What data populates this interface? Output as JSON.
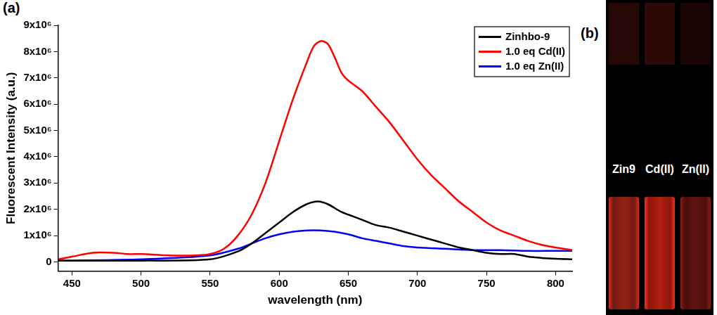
{
  "chart_data": {
    "type": "line",
    "annotations": [
      "(a)"
    ],
    "x_label": "wavelength (nm)",
    "y_label": "Fluorescent Intensity (a.u.)",
    "xlim": [
      440,
      812
    ],
    "xticks": [
      450,
      500,
      550,
      600,
      650,
      700,
      750,
      800
    ],
    "ylim": [
      -350000,
      9000000
    ],
    "yticks": [
      0,
      {
        "value": 1000000,
        "label": "1x10⁶"
      },
      {
        "value": 2000000,
        "label": "2x10⁶"
      },
      {
        "value": 3000000,
        "label": "3x10⁶"
      },
      {
        "value": 4000000,
        "label": "4x10⁶"
      },
      {
        "value": 5000000,
        "label": "5x10⁶"
      },
      {
        "value": 6000000,
        "label": "6x10⁶"
      },
      {
        "value": 7000000,
        "label": "7x10⁶"
      },
      {
        "value": 8000000,
        "label": "8x10⁶"
      },
      {
        "value": 9000000,
        "label": "9x10⁶"
      }
    ],
    "grid": false,
    "legend": "upper right",
    "series": [
      {
        "name": "Zinhbo-9",
        "color": "#000000",
        "x": [
          440,
          450,
          500,
          550,
          570,
          580,
          590,
          600,
          610,
          620,
          628,
          635,
          645,
          650,
          660,
          670,
          680,
          690,
          700,
          710,
          720,
          730,
          740,
          750,
          760,
          770,
          780,
          790,
          800,
          812
        ],
        "values": [
          50000,
          50000,
          50000,
          100000,
          400000,
          700000,
          1100000,
          1500000,
          1900000,
          2200000,
          2300000,
          2200000,
          1900000,
          1800000,
          1600000,
          1400000,
          1300000,
          1150000,
          1000000,
          850000,
          700000,
          550000,
          450000,
          350000,
          300000,
          300000,
          200000,
          150000,
          120000,
          100000
        ]
      },
      {
        "name": "1.0 eq Cd(II)",
        "color": "#ff0000",
        "x": [
          440,
          450,
          465,
          480,
          490,
          500,
          520,
          540,
          550,
          560,
          570,
          580,
          590,
          600,
          610,
          620,
          625,
          630,
          635,
          640,
          645,
          650,
          660,
          670,
          680,
          690,
          700,
          710,
          720,
          730,
          740,
          750,
          760,
          770,
          780,
          790,
          800,
          812
        ],
        "values": [
          100000,
          200000,
          350000,
          350000,
          300000,
          300000,
          250000,
          250000,
          300000,
          500000,
          1000000,
          1800000,
          3000000,
          4600000,
          6200000,
          7600000,
          8200000,
          8400000,
          8300000,
          7800000,
          7200000,
          6900000,
          6500000,
          5900000,
          5300000,
          4600000,
          3900000,
          3300000,
          2800000,
          2300000,
          1900000,
          1500000,
          1200000,
          1000000,
          800000,
          650000,
          550000,
          450000
        ]
      },
      {
        "name": "1.0 eq Zn(II)",
        "color": "#0000ff",
        "x": [
          440,
          450,
          500,
          550,
          570,
          580,
          590,
          600,
          610,
          620,
          630,
          640,
          650,
          660,
          670,
          680,
          690,
          700,
          720,
          740,
          760,
          780,
          800,
          812
        ],
        "values": [
          50000,
          50000,
          100000,
          250000,
          500000,
          700000,
          900000,
          1050000,
          1150000,
          1200000,
          1200000,
          1150000,
          1050000,
          900000,
          800000,
          700000,
          600000,
          550000,
          500000,
          450000,
          450000,
          420000,
          420000,
          420000
        ]
      }
    ]
  },
  "photo": {
    "annotations": [
      "(b)"
    ],
    "cuvettes": [
      {
        "label": "Zin9",
        "color": "#d2301f"
      },
      {
        "label": "Cd(II)",
        "color": "#ff2a1a"
      },
      {
        "label": "Zn(II)",
        "color": "#8a1c14"
      }
    ]
  }
}
